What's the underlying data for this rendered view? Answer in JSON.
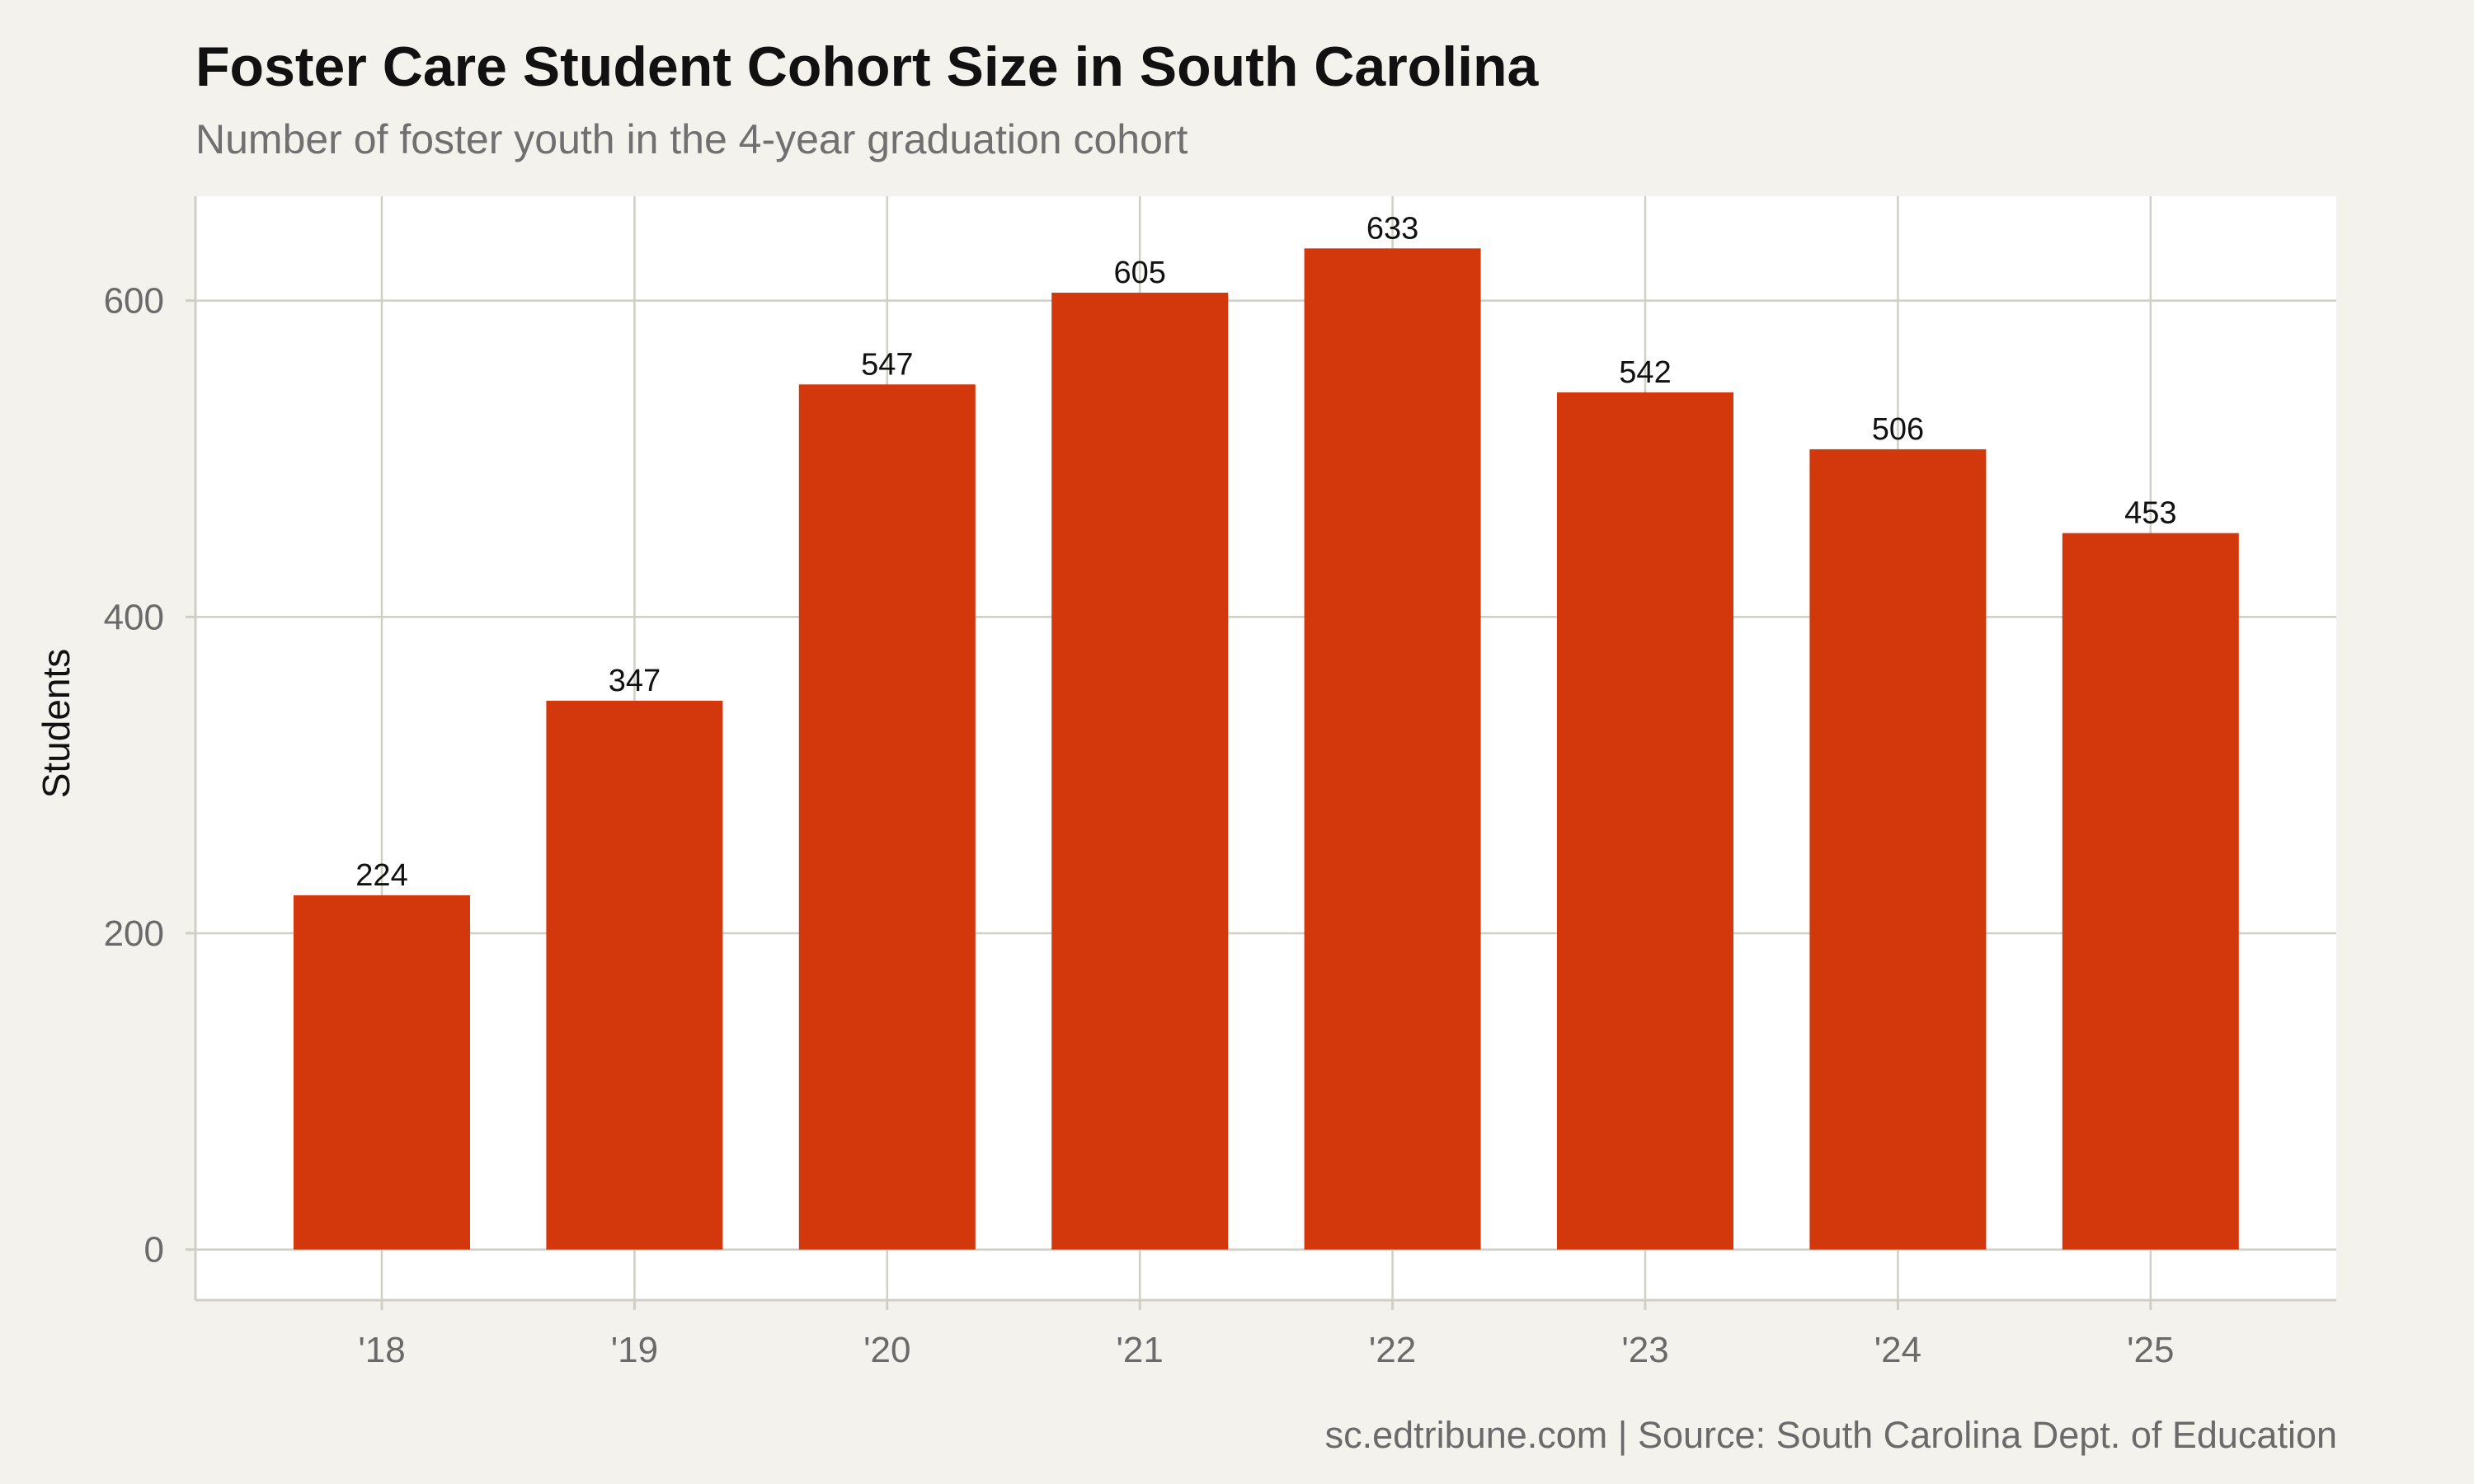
{
  "chart_data": {
    "type": "bar",
    "title": "Foster Care Student Cohort Size in South Carolina",
    "subtitle": "Number of foster youth in the 4-year graduation cohort",
    "ylabel": "Students",
    "xlabel": "",
    "categories": [
      "'18",
      "'19",
      "'20",
      "'21",
      "'22",
      "'23",
      "'24",
      "'25"
    ],
    "values": [
      224,
      347,
      547,
      605,
      633,
      542,
      506,
      453
    ],
    "ylim": [
      -32,
      666
    ],
    "yticks": [
      0,
      200,
      400,
      600
    ],
    "grid": true,
    "legend": "none",
    "caption": "sc.edtribune.com | Source: South Carolina Dept. of Education",
    "colors": {
      "bar": "#d3380d",
      "background": "#f4f2ed",
      "panel": "#ffffff",
      "grid": "#cfcfc6",
      "axis_text": "#6a6a6a"
    }
  }
}
